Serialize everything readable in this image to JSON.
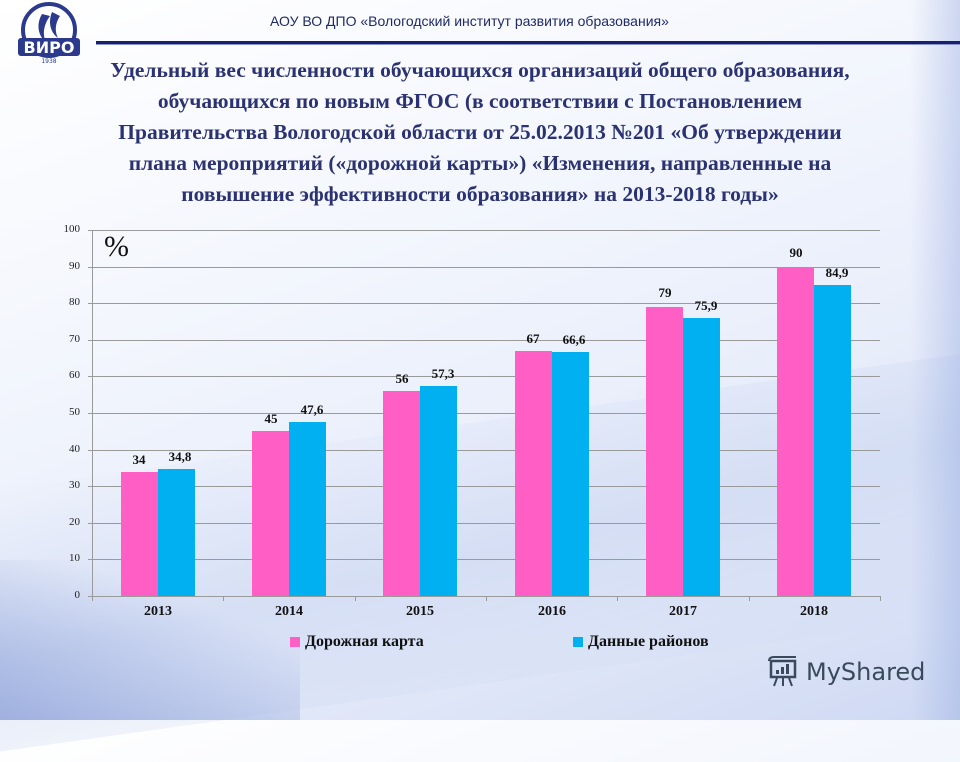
{
  "header": {
    "organization": "АОУ ВО ДПО «Вологодский институт развития образования»",
    "logo_text": "ВИРО",
    "logo_year": "1938"
  },
  "title": {
    "lines": [
      "Удельный вес численности обучающихся организаций общего образования,",
      "обучающихся по новым ФГОС (в соответствии с Постановлением",
      "Правительства Вологодской области от 25.02.2013 №201 «Об утверждении",
      "плана мероприятий («дорожной карты») «Изменения, направленные на",
      "повышение эффективности образования» на 2013-2018 годы»"
    ]
  },
  "chart_data": {
    "type": "bar",
    "title": "Удельный вес численности обучающихся организаций общего образования, обучающихся по новым ФГОС",
    "unit_label": "%",
    "xlabel": "",
    "ylabel": "%",
    "ylim": [
      0,
      100
    ],
    "yticks": [
      0,
      10,
      20,
      30,
      40,
      50,
      60,
      70,
      80,
      90,
      100
    ],
    "grid": true,
    "legend_position": "bottom",
    "categories": [
      "2013",
      "2014",
      "2015",
      "2016",
      "2017",
      "2018"
    ],
    "series": [
      {
        "name": "Дорожная карта",
        "color": "#ff5ec4",
        "values": [
          34,
          45,
          56,
          67,
          79,
          90
        ],
        "labels": [
          "34",
          "45",
          "56",
          "67",
          "79",
          "90"
        ]
      },
      {
        "name": "Данные районов",
        "color": "#00b0f0",
        "values": [
          34.8,
          47.6,
          57.3,
          66.6,
          75.9,
          84.9
        ],
        "labels": [
          "34,8",
          "47,6",
          "57,3",
          "66,6",
          "75,9",
          "84,9"
        ]
      }
    ]
  },
  "watermark": {
    "text": "MyShared"
  }
}
